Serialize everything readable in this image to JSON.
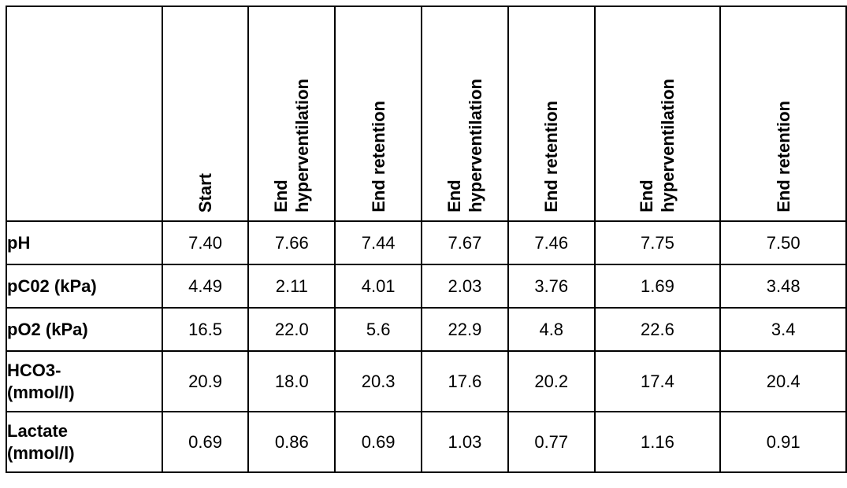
{
  "table": {
    "columns": [
      "Start",
      "End\nhyperventilation",
      "End retention",
      "End\nhyperventilation",
      "End retention",
      "End\nhyperventilation",
      "End retention"
    ],
    "rows": [
      {
        "label": "pH",
        "values": [
          "7.40",
          "7.66",
          "7.44",
          "7.67",
          "7.46",
          "7.75",
          "7.50"
        ]
      },
      {
        "label": "pC02 (kPa)",
        "values": [
          "4.49",
          "2.11",
          "4.01",
          "2.03",
          "3.76",
          "1.69",
          "3.48"
        ]
      },
      {
        "label": "pO2 (kPa)",
        "values": [
          "16.5",
          "22.0",
          "5.6",
          "22.9",
          "4.8",
          "22.6",
          "3.4"
        ]
      },
      {
        "label": "HCO3-\n(mmol/l)",
        "values": [
          "20.9",
          "18.0",
          "20.3",
          "17.6",
          "20.2",
          "17.4",
          "20.4"
        ]
      },
      {
        "label": "Lactate\n(mmol/l)",
        "values": [
          "0.69",
          "0.86",
          "0.69",
          "1.03",
          "0.77",
          "1.16",
          "0.91"
        ]
      }
    ]
  }
}
